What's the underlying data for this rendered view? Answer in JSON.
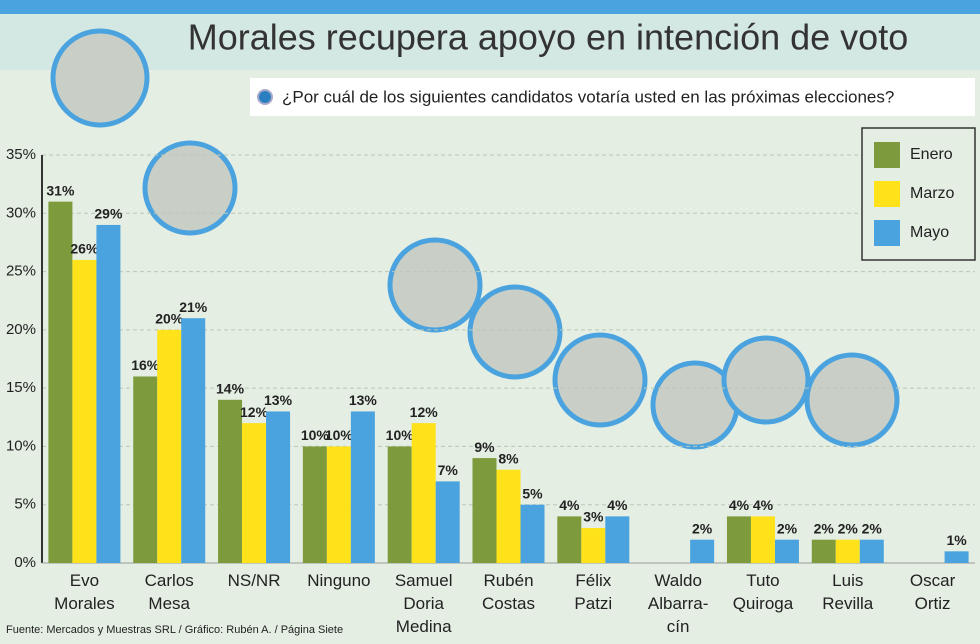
{
  "chart_data": {
    "type": "bar",
    "title": "Morales recupera apoyo en intención de voto",
    "subtitle": "¿Por cuál de los siguientes candidatos votaría usted en las próximas elecciones?",
    "source": "Fuente: Mercados y Muestras SRL / Gráfico: Rubén A. / Página Siete",
    "categories": [
      "Evo\nMorales",
      "Carlos\nMesa",
      "NS/NR",
      "Ninguno",
      "Samuel\nDoria\nMedina",
      "Rubén\nCostas",
      "Félix\nPatzi",
      "Waldo\nAlbarra-\ncín",
      "Tuto\nQuiroga",
      "Luis\nRevilla",
      "Oscar\nOrtiz"
    ],
    "series": [
      {
        "name": "Enero",
        "color": "#7d9b3c",
        "values": [
          31,
          16,
          14,
          10,
          10,
          9,
          4,
          null,
          4,
          2,
          null
        ],
        "value_labels": [
          "31%",
          "16%",
          "14%",
          "10%",
          "10%",
          "9%",
          "4%",
          null,
          "4%",
          "2%",
          null
        ]
      },
      {
        "name": "Marzo",
        "color": "#ffe21a",
        "values": [
          26,
          20,
          12,
          10,
          12,
          8,
          3,
          null,
          4,
          2,
          null
        ],
        "value_labels": [
          "26%",
          "20%",
          "12%",
          "10%",
          "12%",
          "8%",
          "3%",
          null,
          "4%",
          "2%",
          null
        ]
      },
      {
        "name": "Mayo",
        "color": "#4aa3df",
        "values": [
          29,
          21,
          13,
          13,
          7,
          5,
          4,
          2,
          2,
          2,
          1
        ],
        "value_labels": [
          "29%",
          "21%",
          "13%",
          "13%",
          "7%",
          "5%",
          "4%",
          "2%",
          "2%",
          "2%",
          "1%"
        ]
      }
    ],
    "ylim": [
      0,
      35
    ],
    "yticks": [
      {
        "value": 0,
        "label": "0%"
      },
      {
        "value": 5,
        "label": "5%"
      },
      {
        "value": 10,
        "label": "10%"
      },
      {
        "value": 15,
        "label": "15%"
      },
      {
        "value": 20,
        "label": "20%"
      },
      {
        "value": 25,
        "label": "25%"
      },
      {
        "value": 30,
        "label": "30%"
      },
      {
        "value": 35,
        "label": "35%"
      }
    ],
    "grid": true,
    "legend": "top-right"
  }
}
